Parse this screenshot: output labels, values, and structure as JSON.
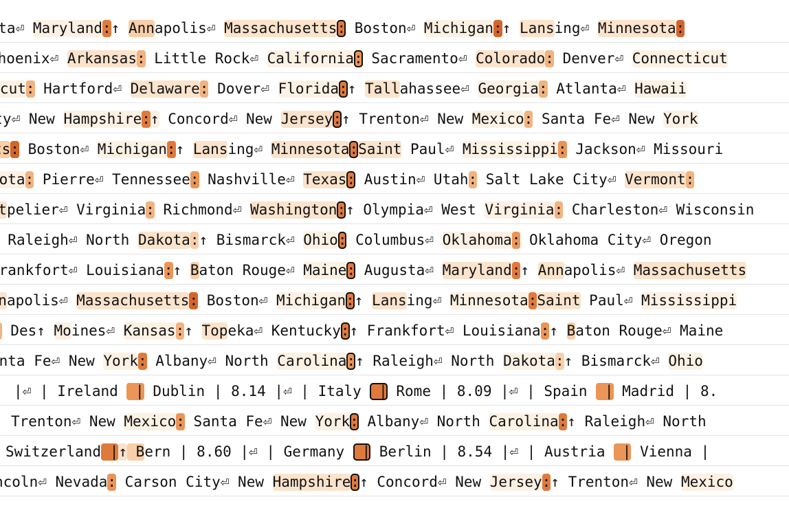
{
  "palette": [
    "#ffffff",
    "#fdf1e4",
    "#fbe3cc",
    "#f8cfa8",
    "#f2b37e",
    "#eb9556",
    "#e07a3c",
    "#d4652a"
  ],
  "rows": [
    {
      "offset": -28,
      "tokens": [
        {
          "t": "usta"
        },
        {
          "t": "⏎ "
        },
        {
          "t": "Maryland",
          "w": 1
        },
        {
          "t": ":",
          "w": 6
        },
        {
          "t": "↑ "
        },
        {
          "t": "Ann",
          "w": 3
        },
        {
          "t": "apolis"
        },
        {
          "t": "⏎ "
        },
        {
          "t": "Massachusetts",
          "w": 2
        },
        {
          "t": ":",
          "w": 6,
          "sel": true
        },
        {
          "t": " Boston"
        },
        {
          "t": "⏎ "
        },
        {
          "t": "Michigan",
          "w": 1
        },
        {
          "t": ":",
          "w": 7
        },
        {
          "t": "↑ "
        },
        {
          "t": "Lans",
          "w": 2
        },
        {
          "t": "ing"
        },
        {
          "t": "⏎ "
        },
        {
          "t": "Minnesota",
          "w": 2
        },
        {
          "t": ":",
          "w": 7
        }
      ]
    },
    {
      "offset": -16,
      "tokens": [
        {
          "t": "Phoenix"
        },
        {
          "t": "⏎ "
        },
        {
          "t": "Arkansas",
          "w": 2
        },
        {
          "t": ":",
          "w": 4
        },
        {
          "t": " Little Rock"
        },
        {
          "t": "⏎ "
        },
        {
          "t": "California",
          "w": 1
        },
        {
          "t": ":",
          "w": 5,
          "sel": true
        },
        {
          "t": " Sacramento"
        },
        {
          "t": "⏎ "
        },
        {
          "t": "Colorado",
          "w": 2
        },
        {
          "t": ":",
          "w": 4
        },
        {
          "t": " Denver"
        },
        {
          "t": "⏎ "
        },
        {
          "t": "Connecticut",
          "w": 1
        }
      ]
    },
    {
      "offset": -38,
      "tokens": [
        {
          "t": "cticut",
          "w": 1
        },
        {
          "t": ":",
          "w": 4
        },
        {
          "t": " Hartford"
        },
        {
          "t": "⏎ "
        },
        {
          "t": "Delaware",
          "w": 2
        },
        {
          "t": ":",
          "w": 4
        },
        {
          "t": " Dover"
        },
        {
          "t": "⏎ "
        },
        {
          "t": "Florida",
          "w": 1
        },
        {
          "t": ":",
          "w": 6,
          "sel": true
        },
        {
          "t": "↑ "
        },
        {
          "t": "Tall",
          "w": 2
        },
        {
          "t": "ahassee"
        },
        {
          "t": "⏎ "
        },
        {
          "t": "Georgia",
          "w": 1
        },
        {
          "t": ":",
          "w": 4
        },
        {
          "t": " Atlanta"
        },
        {
          "t": "⏎ "
        },
        {
          "t": "Hawaii",
          "w": 1
        }
      ]
    },
    {
      "offset": -34,
      "tokens": [
        {
          "t": "City"
        },
        {
          "t": "⏎ "
        },
        {
          "t": "New "
        },
        {
          "t": "Hampshire",
          "w": 1
        },
        {
          "t": ":",
          "w": 6
        },
        {
          "t": "↑",
          "w": 1
        },
        {
          "t": " Concord"
        },
        {
          "t": "⏎ "
        },
        {
          "t": "New "
        },
        {
          "t": "Jersey",
          "w": 2
        },
        {
          "t": ":",
          "w": 6,
          "sel": true
        },
        {
          "t": "↑ "
        },
        {
          "t": "Trenton"
        },
        {
          "t": "⏎ "
        },
        {
          "t": "New "
        },
        {
          "t": "Mexico",
          "w": 1
        },
        {
          "t": ":",
          "w": 4
        },
        {
          "t": " Santa Fe"
        },
        {
          "t": "⏎ "
        },
        {
          "t": "New "
        },
        {
          "t": "York",
          "w": 1
        }
      ]
    },
    {
      "offset": -10,
      "tokens": [
        {
          "t": "ts",
          "w": 3
        },
        {
          "t": ":",
          "w": 7
        },
        {
          "t": " Boston"
        },
        {
          "t": "⏎ "
        },
        {
          "t": "Michigan",
          "w": 1
        },
        {
          "t": ":",
          "w": 6
        },
        {
          "t": "↑ "
        },
        {
          "t": "Lans",
          "w": 2
        },
        {
          "t": "ing"
        },
        {
          "t": "⏎ "
        },
        {
          "t": "Minnesota",
          "w": 2
        },
        {
          "t": ":",
          "w": 6,
          "sel": true
        },
        {
          "t": "Saint",
          "w": 2
        },
        {
          "t": " Paul"
        },
        {
          "t": "⏎ "
        },
        {
          "t": "Mississippi",
          "w": 1
        },
        {
          "t": ":",
          "w": 5
        },
        {
          "t": " Jackson"
        },
        {
          "t": "⏎ "
        },
        {
          "t": "Missouri"
        }
      ]
    },
    {
      "offset": -14,
      "tokens": [
        {
          "t": "kota",
          "w": 1
        },
        {
          "t": ":",
          "w": 4
        },
        {
          "t": " Pierre"
        },
        {
          "t": "⏎ "
        },
        {
          "t": "Tennessee"
        },
        {
          "t": ":",
          "w": 5
        },
        {
          "t": " Nashville"
        },
        {
          "t": "⏎ "
        },
        {
          "t": "Texas",
          "w": 2
        },
        {
          "t": ":",
          "w": 6,
          "sel": true
        },
        {
          "t": " Austin"
        },
        {
          "t": "⏎ "
        },
        {
          "t": "Utah"
        },
        {
          "t": ":",
          "w": 4
        },
        {
          "t": " Salt Lake City"
        },
        {
          "t": "⏎ "
        },
        {
          "t": "Vermont",
          "w": 2
        },
        {
          "t": ":",
          "w": 4
        }
      ]
    },
    {
      "offset": -28,
      "tokens": [
        {
          "t": "ont",
          "w": 2
        },
        {
          "t": "pelier"
        },
        {
          "t": "⏎ "
        },
        {
          "t": "Virginia"
        },
        {
          "t": ":",
          "w": 4
        },
        {
          "t": " Richmond"
        },
        {
          "t": "⏎ "
        },
        {
          "t": "Washington",
          "w": 2
        },
        {
          "t": ":",
          "w": 6,
          "sel": true
        },
        {
          "t": "↑ "
        },
        {
          "t": "Olympia"
        },
        {
          "t": "⏎ "
        },
        {
          "t": "West "
        },
        {
          "t": "Virginia",
          "w": 1
        },
        {
          "t": ":",
          "w": 4
        },
        {
          "t": " Charleston"
        },
        {
          "t": "⏎ "
        },
        {
          "t": "Wisconsin"
        }
      ]
    },
    {
      "offset": -14,
      "tokens": [
        {
          "t": ":",
          "w": 1
        },
        {
          "t": " Raleigh"
        },
        {
          "t": "⏎ "
        },
        {
          "t": "North "
        },
        {
          "t": "Dakota",
          "w": 2
        },
        {
          "t": ":",
          "w": 3
        },
        {
          "t": "↑ "
        },
        {
          "t": "Bismarck"
        },
        {
          "t": "⏎ "
        },
        {
          "t": "Ohio",
          "w": 1
        },
        {
          "t": ":",
          "w": 6,
          "sel": true
        },
        {
          "t": " Columbus"
        },
        {
          "t": "⏎ "
        },
        {
          "t": "Oklahoma",
          "w": 1
        },
        {
          "t": ":",
          "w": 5
        },
        {
          "t": " Oklahoma City"
        },
        {
          "t": "⏎ "
        },
        {
          "t": "Oregon"
        }
      ]
    },
    {
      "offset": -14,
      "tokens": [
        {
          "t": "Frankfort"
        },
        {
          "t": "⏎ "
        },
        {
          "t": "Louisiana"
        },
        {
          "t": ":",
          "w": 5
        },
        {
          "t": "↑ "
        },
        {
          "t": "B",
          "w": 3
        },
        {
          "t": "aton Rouge"
        },
        {
          "t": "⏎ "
        },
        {
          "t": "Maine",
          "w": 1
        },
        {
          "t": ":",
          "w": 6,
          "sel": true
        },
        {
          "t": " Augusta"
        },
        {
          "t": "⏎ "
        },
        {
          "t": "Maryland",
          "w": 2
        },
        {
          "t": ":",
          "w": 6
        },
        {
          "t": "↑ "
        },
        {
          "t": "Ann",
          "w": 2
        },
        {
          "t": "apolis"
        },
        {
          "t": "⏎ "
        },
        {
          "t": "Massachusetts",
          "w": 2
        }
      ]
    },
    {
      "offset": -28,
      "tokens": [
        {
          "t": "Ann",
          "w": 2
        },
        {
          "t": "apolis"
        },
        {
          "t": "⏎ "
        },
        {
          "t": "Massachusetts",
          "w": 2
        },
        {
          "t": ":",
          "w": 7
        },
        {
          "t": " Boston"
        },
        {
          "t": "⏎ "
        },
        {
          "t": "Michigan",
          "w": 1
        },
        {
          "t": ":",
          "w": 6,
          "sel": true
        },
        {
          "t": "↑ "
        },
        {
          "t": "Lans",
          "w": 2
        },
        {
          "t": "ing"
        },
        {
          "t": "⏎ "
        },
        {
          "t": "Minnesota",
          "w": 1
        },
        {
          "t": ":",
          "w": 6
        },
        {
          "t": "Saint",
          "w": 2
        },
        {
          "t": " Paul"
        },
        {
          "t": "⏎ "
        },
        {
          "t": "Mississippi",
          "w": 1
        }
      ]
    },
    {
      "offset": -10,
      "tokens": [
        {
          "t": ":",
          "w": 4
        },
        {
          "t": " Des"
        },
        {
          "t": "↑ "
        },
        {
          "t": "Mo",
          "w": 1
        },
        {
          "t": "ines"
        },
        {
          "t": "⏎ "
        },
        {
          "t": "Kansas",
          "w": 1
        },
        {
          "t": ":",
          "w": 4
        },
        {
          "t": "↑ "
        },
        {
          "t": "Top",
          "w": 2
        },
        {
          "t": "eka"
        },
        {
          "t": "⏎ "
        },
        {
          "t": "Kentucky"
        },
        {
          "t": ":",
          "w": 6,
          "sel": true
        },
        {
          "t": "↑ "
        },
        {
          "t": "Frankfort"
        },
        {
          "t": "⏎ "
        },
        {
          "t": "Louisiana"
        },
        {
          "t": ":",
          "w": 5
        },
        {
          "t": "↑ "
        },
        {
          "t": "B",
          "w": 3
        },
        {
          "t": "aton Rouge"
        },
        {
          "t": "⏎ "
        },
        {
          "t": "Maine"
        }
      ]
    },
    {
      "offset": -14,
      "tokens": [
        {
          "t": "anta Fe"
        },
        {
          "t": "⏎ "
        },
        {
          "t": "New "
        },
        {
          "t": "York",
          "w": 1
        },
        {
          "t": ":",
          "w": 6
        },
        {
          "t": " Albany"
        },
        {
          "t": "⏎ "
        },
        {
          "t": "North "
        },
        {
          "t": "Carolina",
          "w": 1
        },
        {
          "t": ":",
          "w": 5,
          "sel": true
        },
        {
          "t": "↑ "
        },
        {
          "t": "Raleigh"
        },
        {
          "t": "⏎ "
        },
        {
          "t": "North "
        },
        {
          "t": "Dakota",
          "w": 1
        },
        {
          "t": ":",
          "w": 3
        },
        {
          "t": "↑ "
        },
        {
          "t": "Bismarck"
        },
        {
          "t": "⏎ "
        },
        {
          "t": "Ohio",
          "w": 1
        }
      ]
    },
    {
      "offset": 20,
      "tokens": [
        {
          "t": "|"
        },
        {
          "t": "⏎ "
        },
        {
          "t": "| "
        },
        {
          "t": "Ireland "
        },
        {
          "t": " |",
          "w": 5
        },
        {
          "t": " Dublin | 8.14 |"
        },
        {
          "t": "⏎ "
        },
        {
          "t": "| "
        },
        {
          "t": "Italy "
        },
        {
          "t": " |",
          "w": 6,
          "sel": true
        },
        {
          "t": " Rome | 8.09 |"
        },
        {
          "t": "⏎ "
        },
        {
          "t": "| "
        },
        {
          "t": "Spain "
        },
        {
          "t": " |",
          "w": 5
        },
        {
          "t": " Madrid | 8."
        }
      ]
    },
    {
      "offset": 16,
      "tokens": [
        {
          "t": "Trenton"
        },
        {
          "t": "⏎ "
        },
        {
          "t": "New "
        },
        {
          "t": "Mexico",
          "w": 1
        },
        {
          "t": ":",
          "w": 5
        },
        {
          "t": " Santa Fe"
        },
        {
          "t": "⏎ "
        },
        {
          "t": "New "
        },
        {
          "t": "York",
          "w": 1
        },
        {
          "t": ":",
          "w": 6,
          "sel": true
        },
        {
          "t": " Albany"
        },
        {
          "t": "⏎ "
        },
        {
          "t": "North "
        },
        {
          "t": "Carolina",
          "w": 1
        },
        {
          "t": ":",
          "w": 6
        },
        {
          "t": "↑ "
        },
        {
          "t": "Raleigh"
        },
        {
          "t": "⏎ "
        },
        {
          "t": "North"
        }
      ]
    },
    {
      "offset": 8,
      "tokens": [
        {
          "t": "Switzerland"
        },
        {
          "t": " |",
          "w": 6
        },
        {
          "t": "↑",
          "w": 2
        },
        {
          "t": " B",
          "w": 3
        },
        {
          "t": "ern | 8.60 |"
        },
        {
          "t": "⏎ "
        },
        {
          "t": "| "
        },
        {
          "t": "Germany "
        },
        {
          "t": " |",
          "w": 6,
          "sel": true
        },
        {
          "t": " Berlin | 8.54 |"
        },
        {
          "t": "⏎ "
        },
        {
          "t": "| "
        },
        {
          "t": "Austria "
        },
        {
          "t": " |",
          "w": 5
        },
        {
          "t": " Vienna |"
        }
      ]
    },
    {
      "offset": -8,
      "tokens": [
        {
          "t": "ncoln"
        },
        {
          "t": "⏎ "
        },
        {
          "t": "Nevada"
        },
        {
          "t": ":",
          "w": 5
        },
        {
          "t": " Carson City"
        },
        {
          "t": "⏎ "
        },
        {
          "t": "New "
        },
        {
          "t": "Hampshire",
          "w": 2
        },
        {
          "t": ":",
          "w": 6,
          "sel": true
        },
        {
          "t": "↑ "
        },
        {
          "t": "Concord"
        },
        {
          "t": "⏎ "
        },
        {
          "t": "New "
        },
        {
          "t": "Jersey",
          "w": 1
        },
        {
          "t": ":",
          "w": 6
        },
        {
          "t": "↑ "
        },
        {
          "t": "Trenton"
        },
        {
          "t": "⏎ "
        },
        {
          "t": "New "
        },
        {
          "t": "Mexico",
          "w": 1
        }
      ]
    }
  ]
}
